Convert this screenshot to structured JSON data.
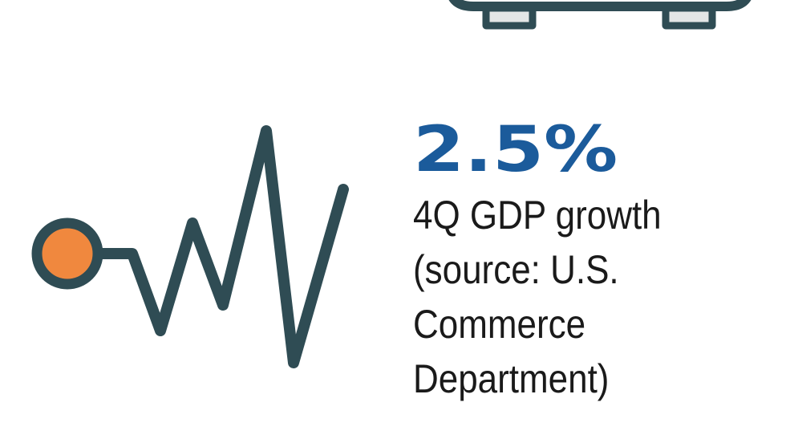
{
  "stat": {
    "value_text": "2.5%",
    "description_lines": [
      "4Q GDP growth",
      "(source: U.S.",
      "Commerce",
      "Department)"
    ]
  }
}
